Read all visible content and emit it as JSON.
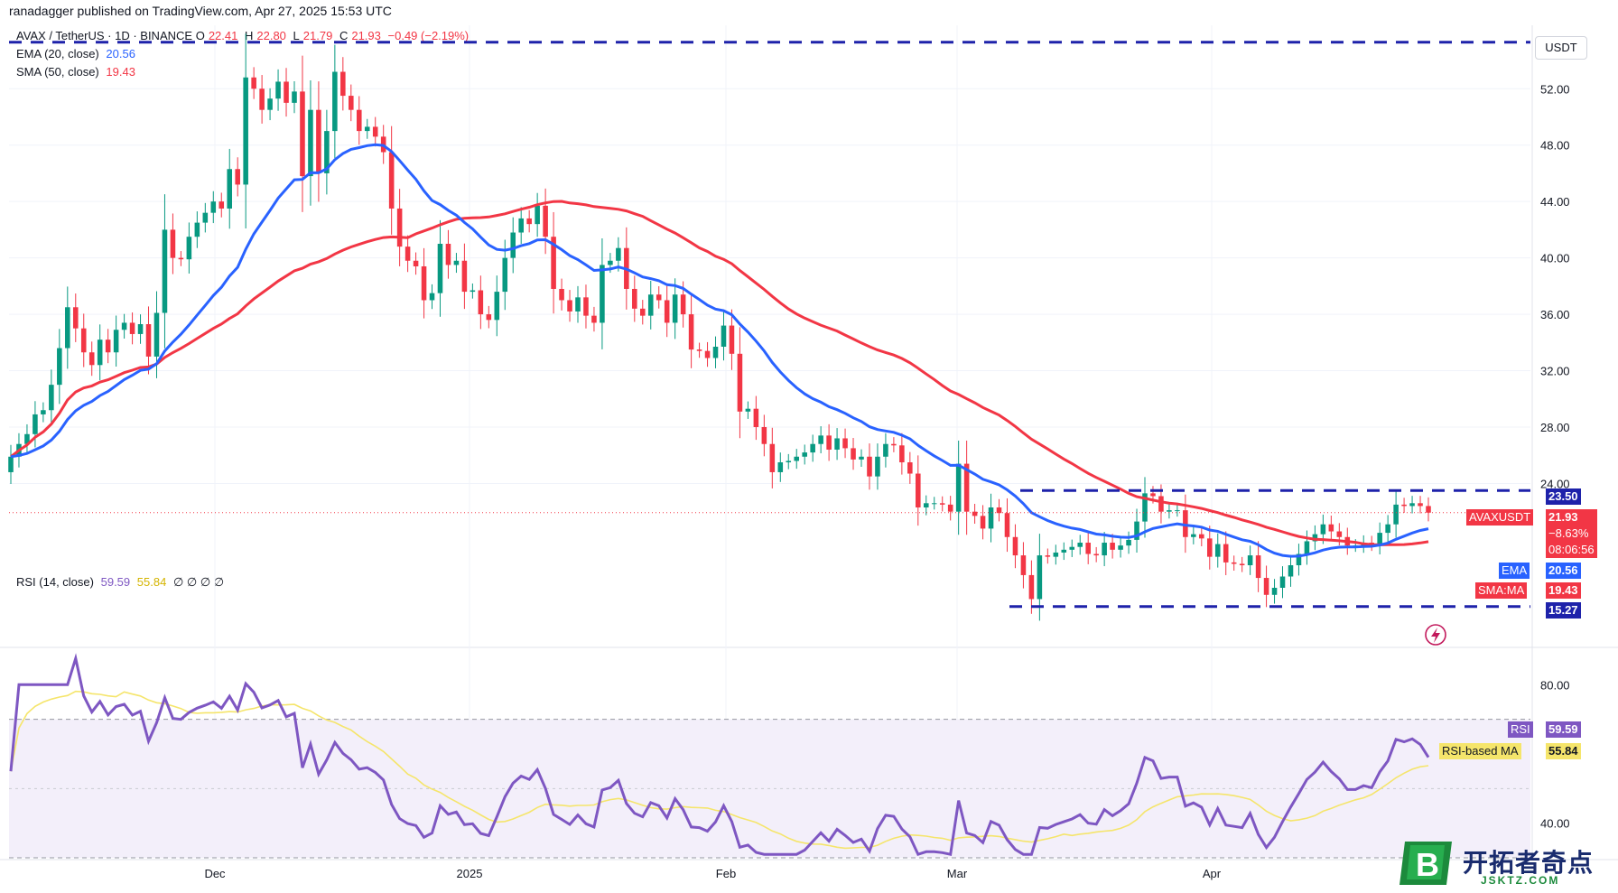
{
  "header": {
    "published": "ranadagger published on TradingView.com, Apr 27, 2025 15:53 UTC"
  },
  "legend": {
    "symbol": "AVAX / TetherUS · 1D · BINANCE",
    "o_label": "O",
    "o_value": "22.41",
    "h_label": "H",
    "h_value": "22.80",
    "l_label": "L",
    "l_value": "21.79",
    "c_label": "C",
    "c_value": "21.93",
    "change": "−0.49 (−2.19%)",
    "ema_label": "EMA (20, close)",
    "ema_value": "20.56",
    "sma_label": "SMA (50, close)",
    "sma_value": "19.43",
    "rsi_label": "RSI (14, close)",
    "rsi_value": "59.59",
    "rsi_ma_value": "55.84",
    "rsi_extra": "∅ ∅ ∅ ∅"
  },
  "currency_button": "USDT",
  "tags": {
    "resistance": "23.50",
    "support": "15.27",
    "symbol_tag": "AVAXUSDT",
    "price": "21.93",
    "pct": "−8.63%",
    "countdown": "08:06:56",
    "ema_tag": "EMA",
    "ema_val": "20.56",
    "sma_tag": "SMA:MA",
    "sma_val": "19.43",
    "rsi_tag": "RSI",
    "rsi_val": "59.59",
    "rsi_ma_tag": "RSI-based MA",
    "rsi_ma_val": "55.84"
  },
  "colors": {
    "up": "#089981",
    "down": "#f23645",
    "ema": "#2962ff",
    "sma": "#f23645",
    "rsi": "#7e57c2",
    "rsi_ma": "#f5e56b",
    "level": "#1e22aa"
  },
  "watermark": {
    "main": "开拓者奇点",
    "sub": "JSKTZ.COM"
  },
  "chart_data": [
    {
      "type": "candlestick",
      "symbol": "AVAXUSDT",
      "ylim": [
        12.5,
        56.5
      ],
      "yticks": [
        "52.00",
        "48.00",
        "44.00",
        "40.00",
        "36.00",
        "32.00",
        "28.00",
        "24.00"
      ],
      "xticks": [
        "Dec",
        "2025",
        "Feb",
        "Mar",
        "Apr"
      ],
      "levels": [
        55.3,
        23.5,
        15.27
      ],
      "close": [
        25.9,
        26.8,
        27.5,
        28.9,
        29.2,
        31.0,
        33.6,
        36.5,
        35.0,
        33.3,
        32.4,
        34.2,
        33.3,
        34.9,
        35.4,
        34.6,
        35.3,
        33.0,
        36.1,
        42.0,
        40.0,
        39.9,
        41.5,
        42.5,
        43.2,
        44.0,
        43.5,
        46.3,
        45.2,
        52.8,
        52.0,
        50.5,
        51.3,
        52.5,
        51.0,
        51.8,
        45.8,
        50.5,
        46.0,
        49.0,
        53.2,
        51.5,
        50.5,
        49.0,
        49.3,
        48.6,
        47.5,
        43.5,
        40.8,
        39.8,
        39.4,
        37.0,
        37.5,
        41.0,
        39.5,
        39.8,
        37.6,
        37.7,
        36.0,
        35.6,
        37.6,
        40.0,
        41.8,
        42.8,
        42.4,
        43.7,
        41.5,
        37.8,
        37.0,
        36.2,
        37.2,
        35.9,
        35.4,
        39.5,
        39.8,
        40.7,
        37.8,
        36.4,
        35.9,
        37.4,
        37.0,
        35.4,
        37.4,
        36.0,
        33.5,
        33.4,
        32.9,
        33.7,
        35.2,
        33.2,
        29.1,
        29.3,
        28.0,
        26.8,
        24.8,
        25.5,
        25.6,
        25.9,
        26.2,
        26.8,
        27.4,
        26.4,
        27.2,
        26.5,
        25.7,
        25.9,
        24.5,
        25.9,
        26.8,
        26.7,
        25.5,
        24.7,
        22.3,
        22.6,
        22.6,
        22.5,
        22.0,
        25.4,
        22.0,
        21.7,
        20.8,
        22.3,
        21.9,
        20.2,
        18.9,
        17.5,
        15.8,
        18.9,
        18.8,
        19.1,
        19.3,
        19.5,
        19.8,
        19.0,
        18.9,
        19.8,
        19.3,
        19.6,
        20.0,
        21.3,
        23.3,
        23.1,
        22.0,
        22.1,
        22.1,
        20.2,
        20.4,
        20.1,
        18.8,
        19.7,
        18.4,
        18.3,
        18.2,
        18.9,
        17.3,
        16.1,
        16.6,
        17.4,
        18.2,
        19.0,
        19.9,
        20.4,
        21.1,
        20.6,
        20.2,
        19.6,
        19.6,
        19.8,
        19.7,
        20.5,
        21.1,
        22.5,
        22.4,
        22.6,
        22.4,
        21.93
      ]
    },
    {
      "type": "line",
      "name": "RSI (14, close)",
      "ylim": [
        30,
        90
      ],
      "yticks": [
        "80.00",
        "40.00"
      ],
      "bands": [
        70,
        30
      ]
    }
  ]
}
